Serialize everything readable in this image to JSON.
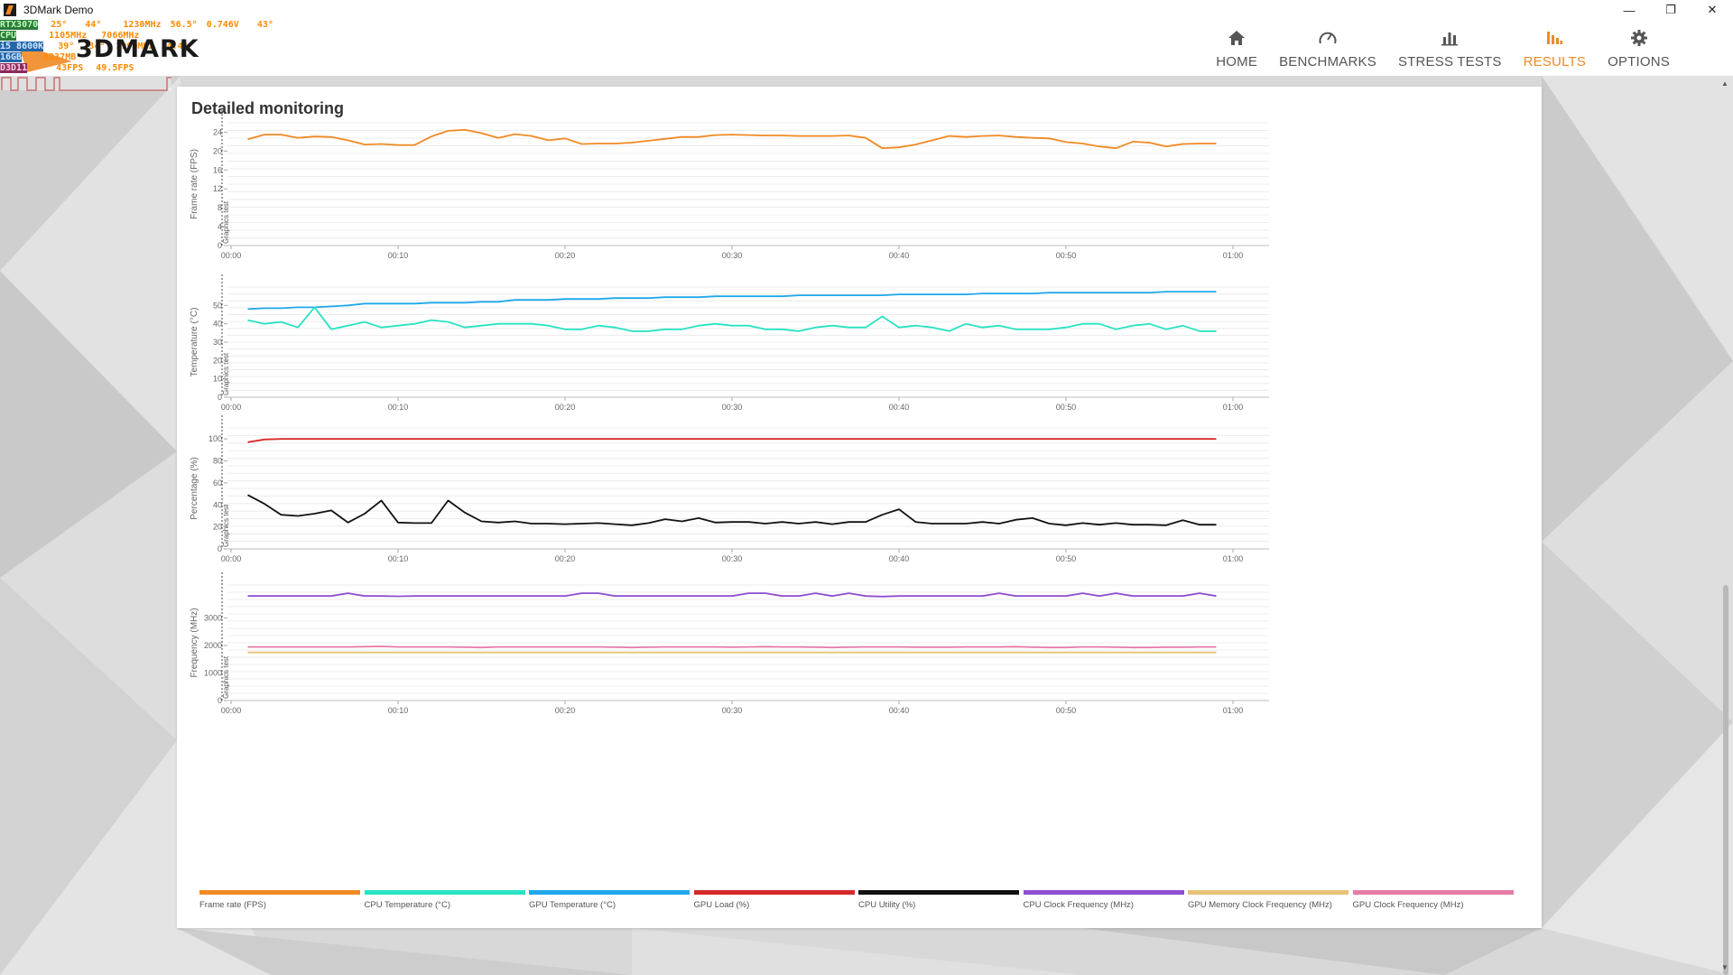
{
  "window": {
    "title": "3DMark Demo",
    "controls": {
      "minimize": "—",
      "restore": "❐",
      "close": "✕"
    }
  },
  "nav": {
    "items": [
      {
        "label": "HOME",
        "icon": "home-icon",
        "active": false
      },
      {
        "label": "BENCHMARKS",
        "icon": "gauge-icon",
        "active": false
      },
      {
        "label": "STRESS TESTS",
        "icon": "bar-chart-icon",
        "active": false
      },
      {
        "label": "RESULTS",
        "icon": "results-bars-icon",
        "active": true
      },
      {
        "label": "OPTIONS",
        "icon": "gear-icon",
        "active": false
      }
    ],
    "accent_color": "#f08a24"
  },
  "overlay": {
    "logo": "3DMARK",
    "rows": [
      [
        "RTX3070",
        "25°",
        "44°",
        "1230MHz",
        "56.5°",
        "0.746V",
        "43°"
      ],
      [
        "CPU",
        "1105MHz",
        "7066MHz"
      ],
      [
        "i5 8600K",
        "39°",
        "34°",
        "3900MHz",
        "24.4°"
      ],
      [
        "16GB",
        "6237MB"
      ],
      [
        "D3D11",
        "43FPS",
        "49.5FPS"
      ]
    ]
  },
  "panel": {
    "title": "Detailed monitoring",
    "marker_label": "Graphics test"
  },
  "chart_data": [
    {
      "type": "line",
      "ylabel": "Frame rate (FPS)",
      "ylim": [
        0,
        26
      ],
      "yticks": [
        "0",
        "4",
        "8",
        "12",
        "16",
        "20",
        "24"
      ],
      "xticks": [
        "00:00",
        "00:10",
        "00:20",
        "00:30",
        "00:40",
        "00:50",
        "01:00"
      ],
      "series": [
        {
          "name": "Frame rate (FPS)",
          "color": "#f08a24",
          "x": [
            1,
            2,
            3,
            4,
            5,
            6,
            7,
            8,
            9,
            10,
            11,
            12,
            13,
            14,
            15,
            16,
            17,
            18,
            19,
            20,
            21,
            22,
            23,
            24,
            25,
            26,
            27,
            28,
            29,
            30,
            31,
            32,
            33,
            34,
            35,
            36,
            37,
            38,
            39,
            40,
            41,
            42,
            43,
            44,
            45,
            46,
            47,
            48,
            49,
            50,
            51,
            52,
            53,
            54,
            55,
            56,
            57,
            58,
            59
          ],
          "values": [
            22.5,
            23.5,
            23.5,
            22.8,
            23.1,
            23.0,
            22.3,
            21.4,
            21.5,
            21.3,
            21.3,
            23.1,
            24.3,
            24.5,
            23.8,
            22.8,
            23.6,
            23.2,
            22.3,
            22.7,
            21.5,
            21.6,
            21.6,
            21.8,
            22.2,
            22.6,
            23.0,
            23.0,
            23.4,
            23.5,
            23.4,
            23.3,
            23.3,
            23.2,
            23.2,
            23.2,
            23.3,
            22.8,
            20.6,
            20.8,
            21.4,
            22.3,
            23.2,
            23.0,
            23.2,
            23.3,
            23.0,
            22.8,
            22.7,
            21.9,
            21.6,
            21.0,
            20.6,
            22.0,
            21.8,
            21.0,
            21.5,
            21.6,
            21.6
          ]
        }
      ]
    },
    {
      "type": "line",
      "ylabel": "Temperature (°C)",
      "ylim": [
        0,
        60
      ],
      "yticks": [
        "0",
        "10",
        "20",
        "30",
        "40",
        "50"
      ],
      "xticks": [
        "00:00",
        "00:10",
        "00:20",
        "00:30",
        "00:40",
        "00:50",
        "01:00"
      ],
      "series": [
        {
          "name": "GPU Temperature (°C)",
          "color": "#1fa8ea",
          "x": [
            1,
            2,
            3,
            4,
            5,
            6,
            7,
            8,
            9,
            10,
            11,
            12,
            13,
            14,
            15,
            16,
            17,
            18,
            19,
            20,
            21,
            22,
            23,
            24,
            25,
            26,
            27,
            28,
            29,
            30,
            31,
            32,
            33,
            34,
            35,
            36,
            37,
            38,
            39,
            40,
            41,
            42,
            43,
            44,
            45,
            46,
            47,
            48,
            49,
            50,
            51,
            52,
            53,
            54,
            55,
            56,
            57,
            58,
            59
          ],
          "values": [
            48,
            48.5,
            48.5,
            49,
            49,
            49.5,
            50,
            51,
            51,
            51,
            51,
            51.5,
            51.5,
            51.5,
            52,
            52,
            53,
            53,
            53,
            53.5,
            53.5,
            53.5,
            54,
            54,
            54,
            54.5,
            54.5,
            54.5,
            55,
            55,
            55,
            55,
            55,
            55.5,
            55.5,
            55.5,
            55.5,
            55.5,
            55.5,
            56,
            56,
            56,
            56,
            56,
            56.5,
            56.5,
            56.5,
            56.5,
            57,
            57,
            57,
            57,
            57,
            57,
            57,
            57.5,
            57.5,
            57.5,
            57.5
          ]
        },
        {
          "name": "CPU Temperature (°C)",
          "color": "#27e3c3",
          "x": [
            1,
            2,
            3,
            4,
            5,
            6,
            7,
            8,
            9,
            10,
            11,
            12,
            13,
            14,
            15,
            16,
            17,
            18,
            19,
            20,
            21,
            22,
            23,
            24,
            25,
            26,
            27,
            28,
            29,
            30,
            31,
            32,
            33,
            34,
            35,
            36,
            37,
            38,
            39,
            40,
            41,
            42,
            43,
            44,
            45,
            46,
            47,
            48,
            49,
            50,
            51,
            52,
            53,
            54,
            55,
            56,
            57,
            58,
            59
          ],
          "values": [
            42,
            40,
            41,
            38,
            49,
            37,
            39,
            41,
            38,
            39,
            40,
            42,
            41,
            38,
            39,
            40,
            40,
            40,
            39,
            37,
            37,
            39,
            38,
            36,
            36,
            37,
            37,
            39,
            40,
            39,
            39,
            37,
            37,
            36,
            38,
            39,
            38,
            38,
            44,
            38,
            39,
            38,
            36,
            40,
            38,
            39,
            37,
            37,
            37,
            38,
            40,
            40,
            37,
            39,
            40,
            37,
            39,
            36,
            36
          ]
        }
      ]
    },
    {
      "type": "line",
      "ylabel": "Percentage (%)",
      "ylim": [
        0,
        110
      ],
      "yticks": [
        "0",
        "20",
        "40",
        "60",
        "80",
        "100"
      ],
      "xticks": [
        "00:00",
        "00:10",
        "00:20",
        "00:30",
        "00:40",
        "00:50",
        "01:00"
      ],
      "series": [
        {
          "name": "GPU Load (%)",
          "color": "#d62a2a",
          "x": [
            1,
            2,
            3,
            4,
            5,
            6,
            7,
            8,
            9,
            10,
            11,
            12,
            13,
            14,
            15,
            16,
            17,
            18,
            19,
            20,
            21,
            22,
            23,
            24,
            25,
            26,
            27,
            28,
            29,
            30,
            31,
            32,
            33,
            34,
            35,
            36,
            37,
            38,
            39,
            40,
            41,
            42,
            43,
            44,
            45,
            46,
            47,
            48,
            49,
            50,
            51,
            52,
            53,
            54,
            55,
            56,
            57,
            58,
            59
          ],
          "values": [
            97,
            99.5,
            100,
            100,
            100,
            100,
            100,
            100,
            100,
            100,
            100,
            100,
            100,
            100,
            100,
            100,
            100,
            100,
            100,
            100,
            100,
            100,
            100,
            100,
            100,
            100,
            100,
            100,
            100,
            100,
            100,
            100,
            100,
            100,
            100,
            100,
            100,
            100,
            100,
            100,
            100,
            100,
            100,
            100,
            100,
            100,
            100,
            100,
            100,
            100,
            100,
            100,
            100,
            100,
            100,
            100,
            100,
            100,
            100
          ]
        },
        {
          "name": "CPU Utility (%)",
          "color": "#111111",
          "x": [
            1,
            2,
            3,
            4,
            5,
            6,
            7,
            8,
            9,
            10,
            11,
            12,
            13,
            14,
            15,
            16,
            17,
            18,
            19,
            20,
            21,
            22,
            23,
            24,
            25,
            26,
            27,
            28,
            29,
            30,
            31,
            32,
            33,
            34,
            35,
            36,
            37,
            38,
            39,
            40,
            41,
            42,
            43,
            44,
            45,
            46,
            47,
            48,
            49,
            50,
            51,
            52,
            53,
            54,
            55,
            56,
            57,
            58,
            59
          ],
          "values": [
            49,
            41,
            31,
            30,
            32,
            35,
            24,
            32,
            44,
            24,
            23.5,
            23.5,
            44,
            33,
            25,
            24,
            25,
            23,
            23,
            22.5,
            23,
            23.5,
            22.5,
            21.5,
            23.5,
            27,
            25,
            28,
            24,
            24.5,
            24.5,
            23,
            24.5,
            23,
            24.5,
            22.5,
            24.5,
            24.5,
            31,
            36,
            24.5,
            23,
            23,
            23,
            24.5,
            23,
            26.5,
            28,
            23,
            21.5,
            23.5,
            22,
            23.5,
            22,
            22,
            21.5,
            26,
            22,
            22
          ]
        }
      ]
    },
    {
      "type": "line",
      "ylabel": "Frequency (MHz)",
      "ylim": [
        0,
        4200
      ],
      "yticks": [
        "0",
        "1000",
        "2000",
        "3000"
      ],
      "xticks": [
        "00:00",
        "00:10",
        "00:20",
        "00:30",
        "00:40",
        "00:50",
        "01:00"
      ],
      "series": [
        {
          "name": "CPU Clock Frequency (MHz)",
          "color": "#8f4fd0",
          "x": [
            1,
            2,
            3,
            4,
            5,
            6,
            7,
            8,
            9,
            10,
            11,
            12,
            13,
            14,
            15,
            16,
            17,
            18,
            19,
            20,
            21,
            22,
            23,
            24,
            25,
            26,
            27,
            28,
            29,
            30,
            31,
            32,
            33,
            34,
            35,
            36,
            37,
            38,
            39,
            40,
            41,
            42,
            43,
            44,
            45,
            46,
            47,
            48,
            49,
            50,
            51,
            52,
            53,
            54,
            55,
            56,
            57,
            58,
            59
          ],
          "values": [
            3800,
            3800,
            3800,
            3800,
            3800,
            3800,
            3900,
            3800,
            3800,
            3790,
            3800,
            3800,
            3800,
            3800,
            3800,
            3800,
            3800,
            3800,
            3800,
            3800,
            3900,
            3900,
            3800,
            3800,
            3800,
            3800,
            3800,
            3800,
            3800,
            3800,
            3900,
            3900,
            3800,
            3800,
            3900,
            3800,
            3900,
            3800,
            3780,
            3800,
            3800,
            3800,
            3800,
            3800,
            3800,
            3900,
            3800,
            3800,
            3800,
            3800,
            3900,
            3800,
            3900,
            3800,
            3800,
            3800,
            3800,
            3900,
            3800
          ]
        },
        {
          "name": "GPU Clock Frequency (MHz)",
          "color": "#e67ca8",
          "x": [
            1,
            2,
            3,
            4,
            5,
            6,
            7,
            8,
            9,
            10,
            11,
            12,
            13,
            14,
            15,
            16,
            17,
            18,
            19,
            20,
            21,
            22,
            23,
            24,
            25,
            26,
            27,
            28,
            29,
            30,
            31,
            32,
            33,
            34,
            35,
            36,
            37,
            38,
            39,
            40,
            41,
            42,
            43,
            44,
            45,
            46,
            47,
            48,
            49,
            50,
            51,
            52,
            53,
            54,
            55,
            56,
            57,
            58,
            59
          ],
          "values": [
            1950,
            1950,
            1950,
            1950,
            1950,
            1950,
            1950,
            1960,
            1970,
            1950,
            1950,
            1950,
            1950,
            1940,
            1930,
            1950,
            1950,
            1950,
            1950,
            1950,
            1950,
            1950,
            1940,
            1930,
            1940,
            1950,
            1950,
            1950,
            1950,
            1940,
            1950,
            1960,
            1950,
            1950,
            1940,
            1930,
            1940,
            1950,
            1950,
            1950,
            1940,
            1940,
            1940,
            1950,
            1950,
            1950,
            1960,
            1940,
            1930,
            1930,
            1950,
            1950,
            1940,
            1930,
            1930,
            1940,
            1940,
            1950,
            1950
          ]
        },
        {
          "name": "GPU Memory Clock Frequency (MHz)",
          "color": "#e8c27a",
          "x": [
            1,
            59
          ],
          "values": [
            1750,
            1750
          ]
        }
      ]
    }
  ],
  "legend": [
    {
      "label": "Frame rate (FPS)",
      "color": "#f08a24"
    },
    {
      "label": "CPU Temperature (°C)",
      "color": "#27e3c3"
    },
    {
      "label": "GPU Temperature (°C)",
      "color": "#1fa8ea"
    },
    {
      "label": "GPU Load (%)",
      "color": "#d62a2a"
    },
    {
      "label": "CPU Utility (%)",
      "color": "#111111"
    },
    {
      "label": "CPU Clock Frequency (MHz)",
      "color": "#8f4fd0"
    },
    {
      "label": "GPU Memory Clock Frequency (MHz)",
      "color": "#e8c27a"
    },
    {
      "label": "GPU Clock Frequency (MHz)",
      "color": "#e67ca8"
    }
  ]
}
